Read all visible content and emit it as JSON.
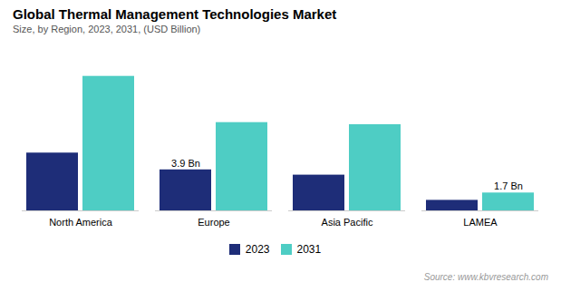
{
  "chart_data": {
    "type": "bar",
    "title": "Global Thermal Management Technologies Market",
    "subtitle": "Size, by Region, 2023, 2031, (USD Billion)",
    "source": "Source: www.kbvresearch.com",
    "categories": [
      "North America",
      "Europe",
      "Asia Pacific",
      "LAMEA"
    ],
    "series": [
      {
        "name": "2023",
        "color": "#1e2d78",
        "values": [
          5.5,
          3.9,
          3.4,
          1.0
        ]
      },
      {
        "name": "2031",
        "color": "#4ecdc4",
        "values": [
          12.8,
          8.4,
          8.2,
          1.7
        ]
      }
    ],
    "annotations": [
      {
        "category": "Europe",
        "series": "2023",
        "text": "3.9 Bn"
      },
      {
        "category": "LAMEA",
        "series": "2031",
        "text": "1.7 Bn"
      }
    ],
    "ylim": [
      0,
      14.5
    ],
    "tick_labels": "x",
    "grid": false,
    "legend": "bottom"
  }
}
